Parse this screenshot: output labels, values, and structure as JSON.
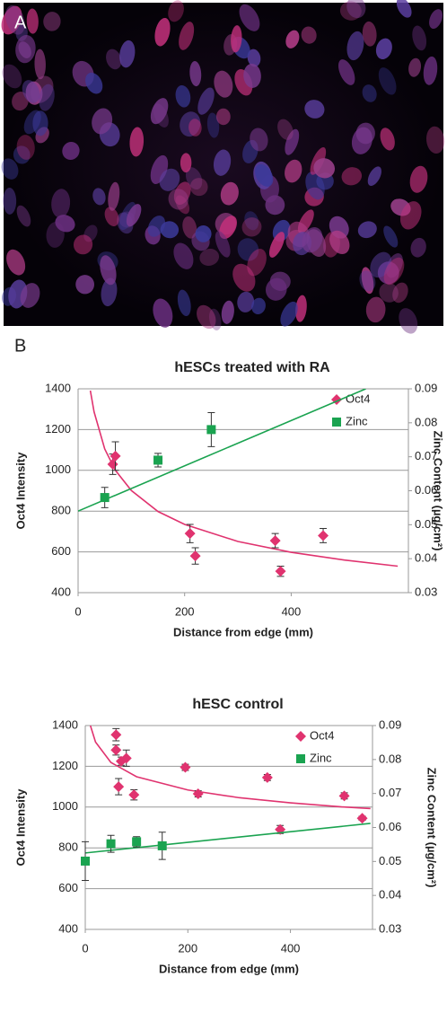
{
  "figure": {
    "panel_a_label": "A",
    "panel_b_label": "B"
  },
  "chart_data": [
    {
      "type": "scatter",
      "title": "hESCs treated with RA",
      "xlabel": "Distance from edge (mm)",
      "ylabel": "Oct4 Intensity",
      "y2label": "Zinc Content (µg/cm²)",
      "xlim": [
        0,
        620
      ],
      "xticks": [
        0,
        200,
        400
      ],
      "ylim": [
        400,
        1400
      ],
      "yticks": [
        400,
        600,
        800,
        1000,
        1200,
        1400
      ],
      "y2lim": [
        0.03,
        0.09
      ],
      "y2ticks": [
        0.03,
        0.04,
        0.05,
        0.06,
        0.07,
        0.08,
        0.09
      ],
      "grid": true,
      "legend": "upper right",
      "series": [
        {
          "name": "Oct4",
          "color": "#e0336f",
          "marker": "diamond",
          "x": [
            65,
            70,
            210,
            220,
            370,
            380,
            460
          ],
          "values": [
            1030,
            1070,
            690,
            580,
            655,
            505,
            680
          ],
          "errors": [
            50,
            70,
            45,
            40,
            35,
            25,
            35
          ],
          "trendline": {
            "x": [
              23,
              30,
              50,
              70,
              100,
              150,
              200,
              300,
              400,
              500,
              600
            ],
            "values": [
              1391,
              1287,
              1105,
              1000,
              901,
              798,
              735,
              651,
              598,
              560,
              530
            ]
          }
        },
        {
          "name": "Zinc",
          "color": "#1aa350",
          "marker": "square",
          "axis": "y2",
          "x": [
            50,
            150,
            250
          ],
          "values": [
            0.058,
            0.069,
            0.078
          ],
          "errors": [
            0.003,
            0.002,
            0.005
          ],
          "trendline": {
            "x": [
              0,
              540
            ],
            "values": [
              0.054,
              0.09
            ]
          }
        }
      ]
    },
    {
      "type": "scatter",
      "title": "hESC control",
      "xlabel": "Distance from edge (mm)",
      "ylabel": "Oct4 Intensity",
      "y2label": "Zinc Content (µg/cm²)",
      "xlim": [
        0,
        560
      ],
      "xticks": [
        0,
        200,
        400
      ],
      "ylim": [
        400,
        1400
      ],
      "yticks": [
        400,
        600,
        800,
        1000,
        1200,
        1400
      ],
      "y2lim": [
        0.03,
        0.09
      ],
      "y2ticks": [
        0.03,
        0.04,
        0.05,
        0.06,
        0.07,
        0.08,
        0.09
      ],
      "grid": true,
      "legend": "upper right",
      "series": [
        {
          "name": "Oct4",
          "color": "#e0336f",
          "marker": "diamond",
          "x": [
            60,
            60,
            65,
            70,
            80,
            95,
            195,
            220,
            355,
            380,
            505,
            540
          ],
          "values": [
            1355,
            1280,
            1100,
            1225,
            1240,
            1060,
            1195,
            1065,
            1145,
            890,
            1055,
            945
          ],
          "errors": [
            30,
            25,
            40,
            20,
            40,
            25,
            15,
            15,
            15,
            20,
            15,
            10
          ],
          "trendline": {
            "x": [
              10,
              20,
              50,
              100,
              200,
              300,
              400,
              500,
              556
            ],
            "values": [
              1400,
              1319,
              1219,
              1149,
              1084,
              1046,
              1021,
              1001,
              993
            ]
          }
        },
        {
          "name": "Zinc",
          "color": "#1aa350",
          "marker": "square",
          "axis": "y2",
          "x": [
            0,
            50,
            100,
            150
          ],
          "values": [
            0.0501,
            0.0552,
            0.0558,
            0.0546
          ],
          "errors": [
            0.0057,
            0.0025,
            0.0015,
            0.004
          ],
          "trendline": {
            "x": [
              0,
              556
            ],
            "values": [
              0.0525,
              0.0612
            ]
          }
        }
      ]
    }
  ]
}
